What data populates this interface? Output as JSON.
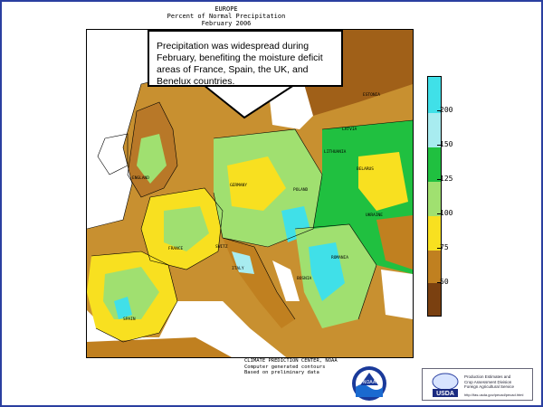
{
  "header": {
    "line1": "EUROPE",
    "line2": "Percent of Normal Precipitation",
    "line3": "February 2006"
  },
  "callout": {
    "text": "Precipitation was widespread during February, benefiting the moisture deficit areas of France, Spain, the UK, and Benelux countries."
  },
  "legend": {
    "ticks": [
      "200",
      "150",
      "125",
      "100",
      "75",
      "50"
    ],
    "colors": {
      "above200": "#40e0e8",
      "150_200": "#a8ecf0",
      "125_150": "#20c040",
      "100_125": "#a0e070",
      "75_100": "#f8e020",
      "50_75": "#c08020",
      "below50": "#7a4010"
    }
  },
  "countries": [
    "ESTONIA",
    "LATVIA",
    "LITHUANIA",
    "BELARUS",
    "POLAND",
    "UKRAINE",
    "GERMANY",
    "ENGLAND",
    "FRANCE",
    "SWITZ",
    "ITALY",
    "ROMANIA",
    "SPAIN",
    "BOSNIA"
  ],
  "credit": {
    "line1": "CLIMATE PREDICTION CENTER, NOAA",
    "line2": "Computer generated contours",
    "line3": "Based on preliminary data"
  },
  "logos": {
    "noaa": "NOAA",
    "usda_name": "USDA",
    "usda_text": [
      "Production Estimates and",
      "Crop Assessment Division",
      "Foreign Agricultural Service"
    ],
    "usda_url": "http://fas.usda.gov/pecad/pecad.html"
  }
}
